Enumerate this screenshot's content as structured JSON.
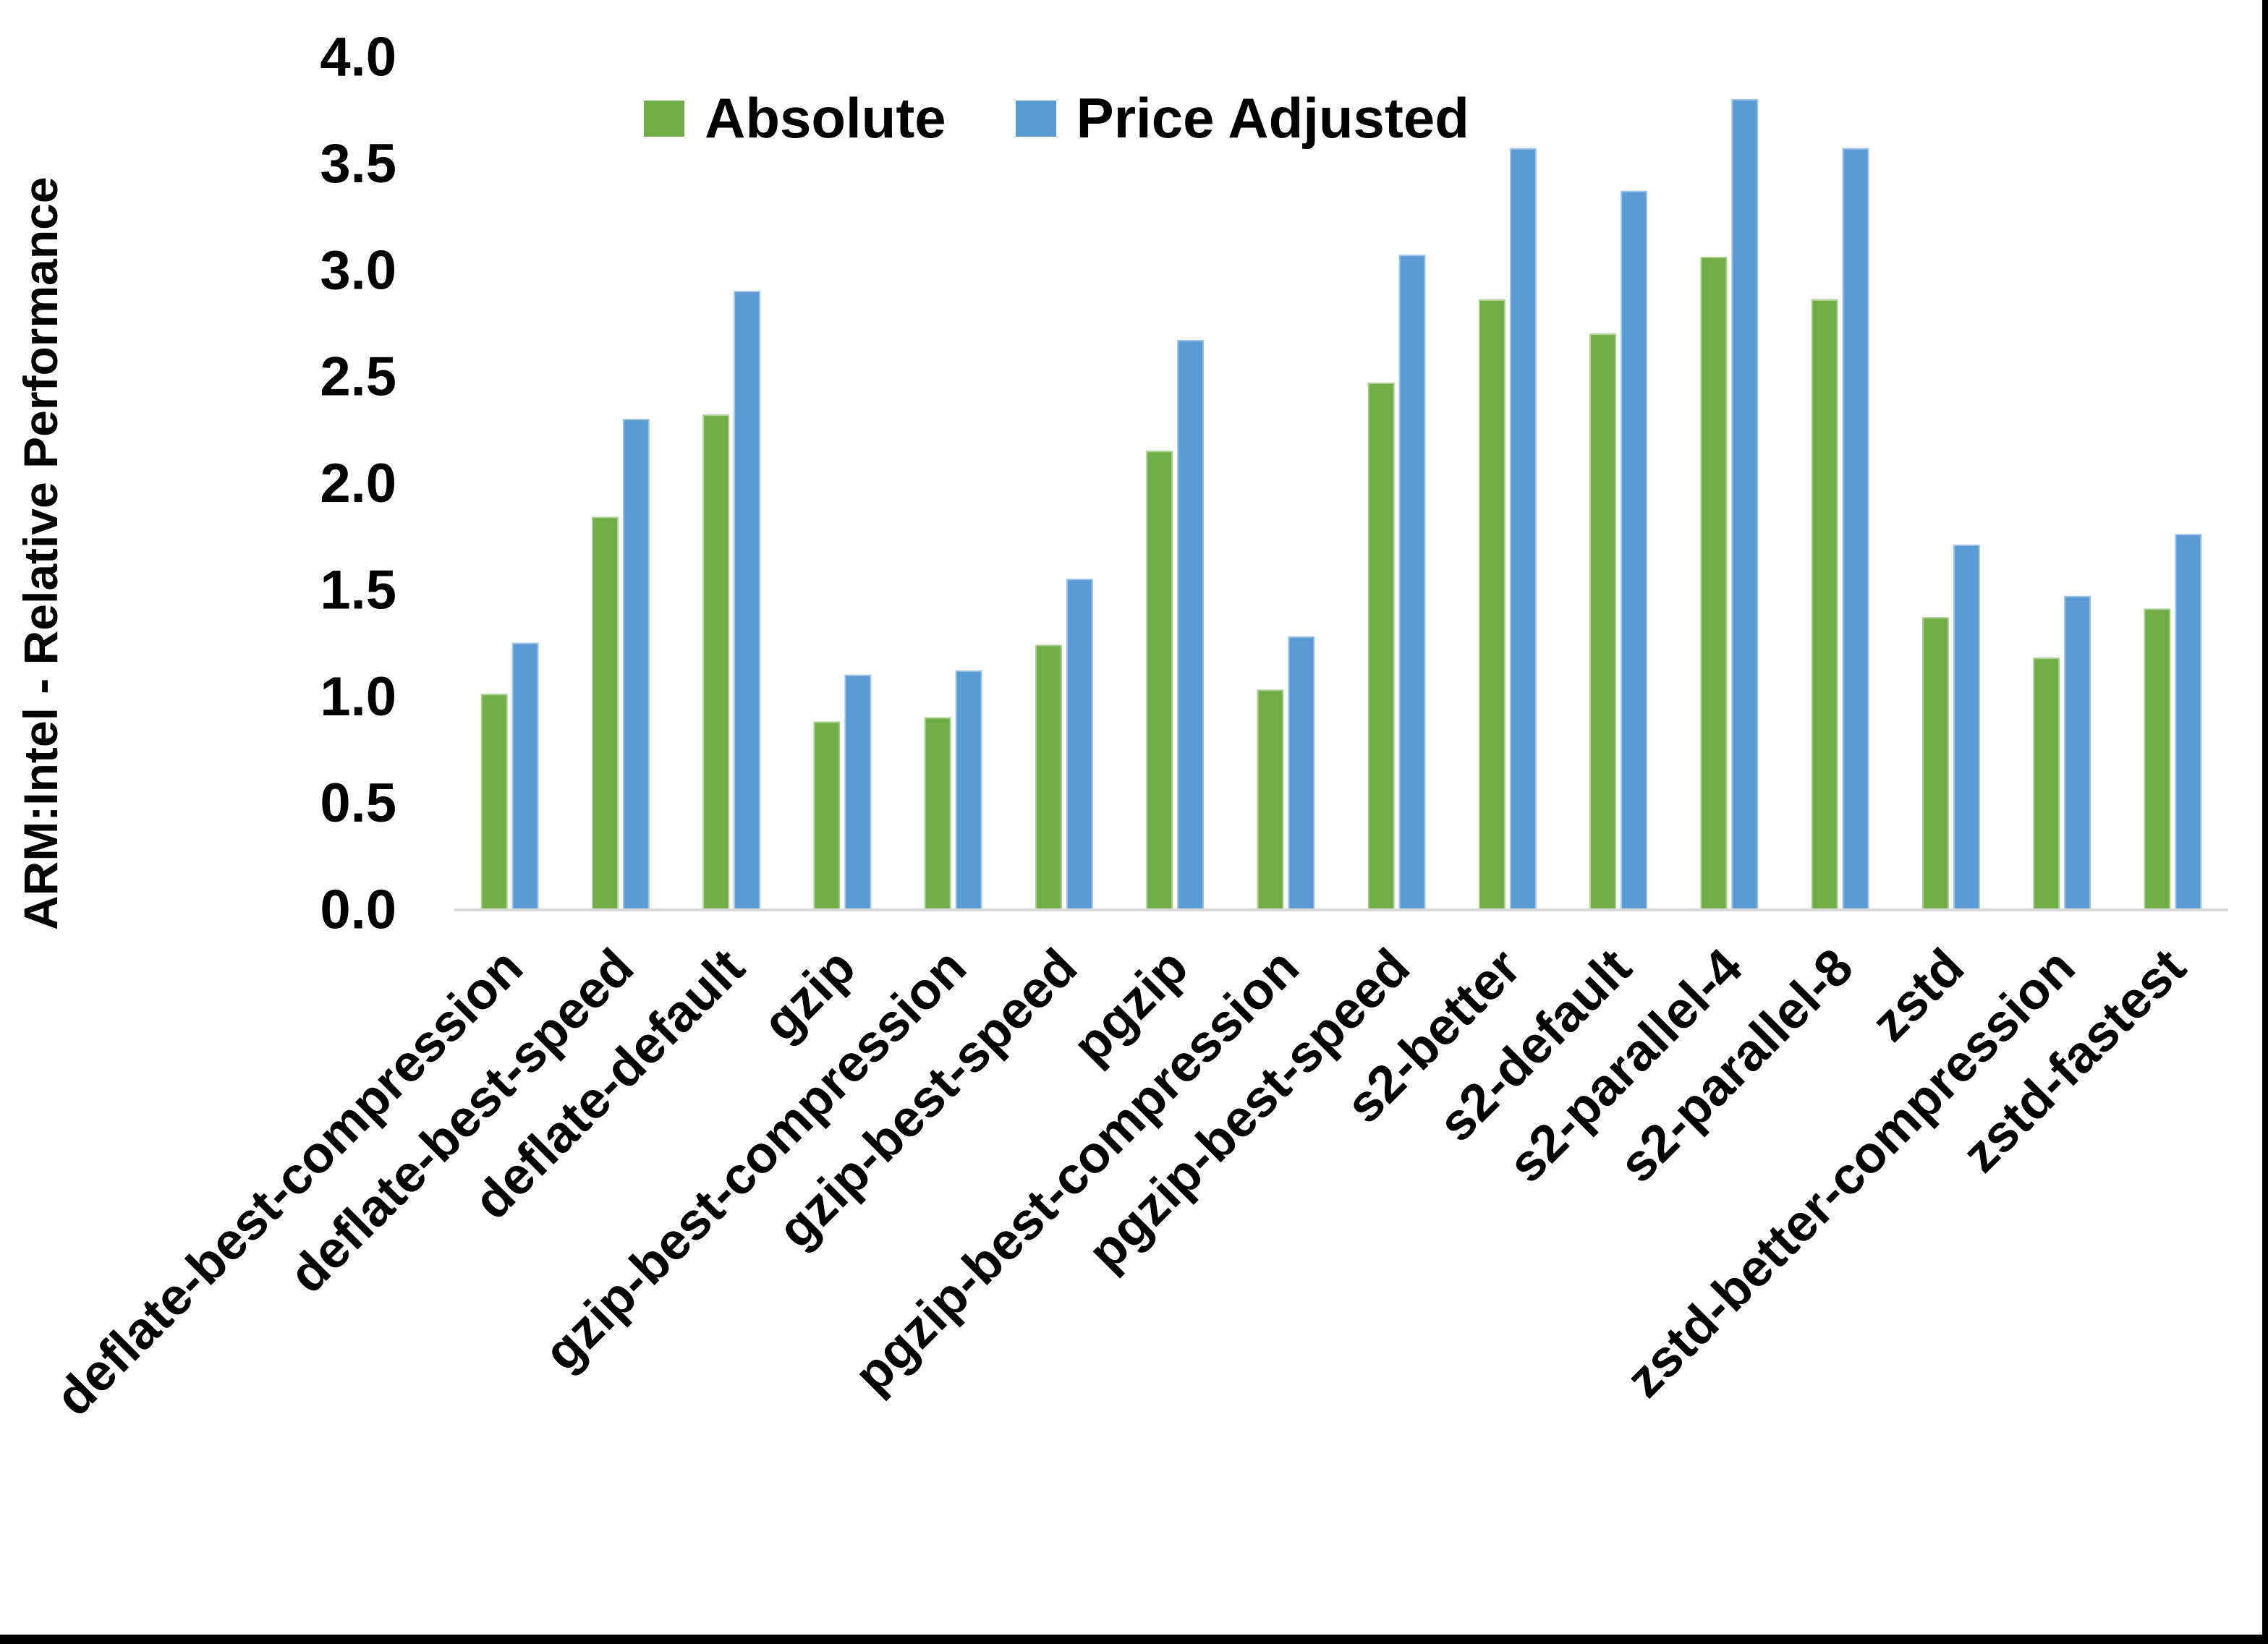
{
  "chart_data": {
    "type": "bar",
    "title": "",
    "ylabel": "ARM:Intel - Relative Performance",
    "xlabel": "",
    "ylim": [
      0.0,
      4.0
    ],
    "ytick_step": 0.5,
    "ytick_labels": [
      "0.0",
      "0.5",
      "1.0",
      "1.5",
      "2.0",
      "2.5",
      "3.0",
      "3.5",
      "4.0"
    ],
    "grid": false,
    "legend_position": "top-center",
    "axis_line_color": "#D9D9D9",
    "text_color": "#000000",
    "categories": [
      "deflate-best-compression",
      "deflate-best-speed",
      "deflate-default",
      "gzip",
      "gzip-best-compression",
      "gzip-best-speed",
      "pgzip",
      "pgzip-best-compression",
      "pgzip-best-speed",
      "s2-better",
      "s2-default",
      "s2-parallel-4",
      "s2-parallel-8",
      "zstd",
      "zstd-better-compression",
      "zstd-fastest"
    ],
    "series": [
      {
        "name": "Absolute",
        "color": "#70AD47",
        "edge_color": "#A9D18E",
        "values": [
          1.01,
          1.84,
          2.32,
          0.88,
          0.9,
          1.24,
          2.15,
          1.03,
          2.47,
          2.86,
          2.7,
          3.06,
          2.86,
          1.37,
          1.18,
          1.41
        ]
      },
      {
        "name": "Price Adjusted",
        "color": "#5B9BD5",
        "edge_color": "#9DC3E6",
        "values": [
          1.25,
          2.3,
          2.9,
          1.1,
          1.12,
          1.55,
          2.67,
          1.28,
          3.07,
          3.57,
          3.37,
          3.8,
          3.57,
          1.71,
          1.47,
          1.76
        ]
      }
    ]
  }
}
